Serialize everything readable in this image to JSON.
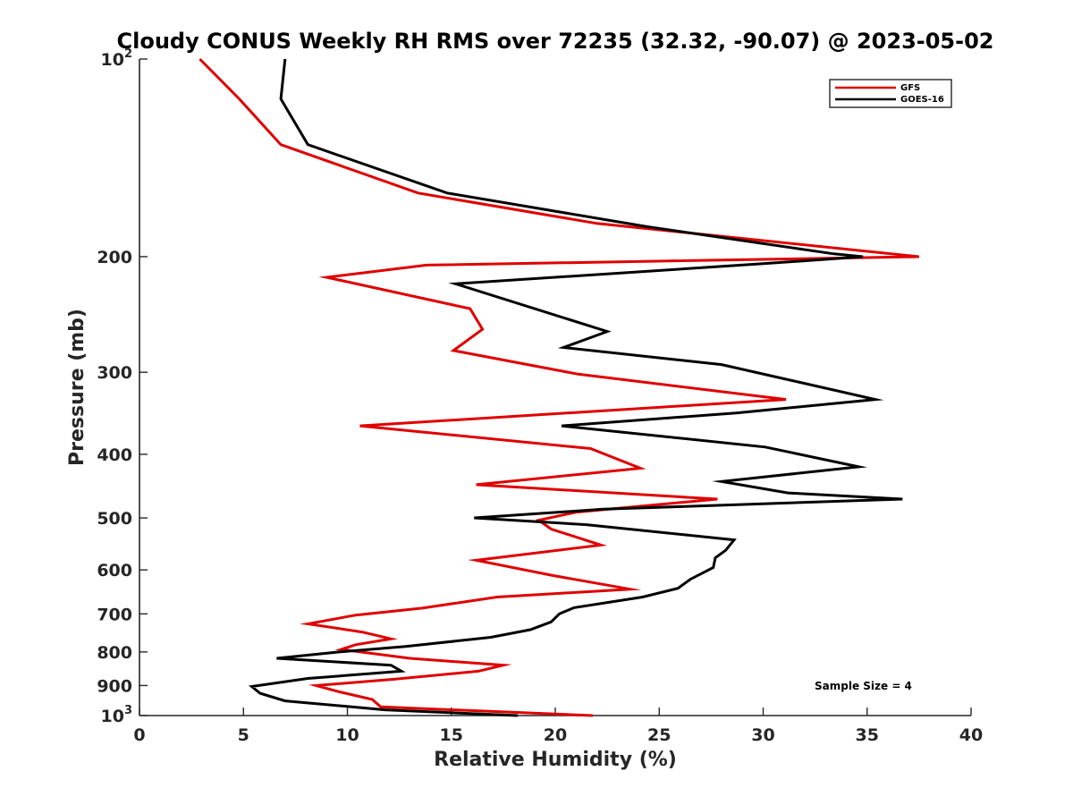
{
  "chart_data": {
    "type": "line",
    "title": "Cloudy CONUS Weekly RH RMS over 72235 (32.32, -90.07) @ 2023-05-02",
    "xlabel": "Relative Humidity (%)",
    "ylabel": "Pressure (mb)",
    "xlim": [
      0,
      40
    ],
    "ylim": [
      100,
      1000
    ],
    "yscale": "log",
    "y_reversed": true,
    "x_ticks": [
      0,
      5,
      10,
      15,
      20,
      25,
      30,
      35,
      40
    ],
    "y_ticks": [
      {
        "value": 100,
        "label": "10",
        "sup": "2"
      },
      {
        "value": 200,
        "label": "200"
      },
      {
        "value": 300,
        "label": "300"
      },
      {
        "value": 400,
        "label": "400"
      },
      {
        "value": 500,
        "label": "500"
      },
      {
        "value": 600,
        "label": "600"
      },
      {
        "value": 700,
        "label": "700"
      },
      {
        "value": 800,
        "label": "800"
      },
      {
        "value": 900,
        "label": "900"
      },
      {
        "value": 1000,
        "label": "10",
        "sup": "3"
      }
    ],
    "legend_position": "top-right",
    "annotation": "Sample Size = 4",
    "series": [
      {
        "name": "GFS",
        "color": "#e00000",
        "points": [
          [
            2.9,
            100
          ],
          [
            4.8,
            115
          ],
          [
            6.8,
            135
          ],
          [
            13.4,
            160
          ],
          [
            22,
            178
          ],
          [
            37.5,
            200
          ],
          [
            13.8,
            206
          ],
          [
            9.0,
            215
          ],
          [
            15.9,
            240
          ],
          [
            16.5,
            258
          ],
          [
            15.1,
            278
          ],
          [
            21.1,
            302
          ],
          [
            31.1,
            330
          ],
          [
            10.6,
            362
          ],
          [
            21.7,
            392
          ],
          [
            24.1,
            420
          ],
          [
            16.2,
            445
          ],
          [
            27.8,
            468
          ],
          [
            21.0,
            490
          ],
          [
            19.2,
            504
          ],
          [
            19.8,
            520
          ],
          [
            22.2,
            550
          ],
          [
            16.2,
            580
          ],
          [
            19.9,
            612
          ],
          [
            23.6,
            642
          ],
          [
            17.2,
            660
          ],
          [
            13.6,
            686
          ],
          [
            10.4,
            703
          ],
          [
            8.1,
            725
          ],
          [
            10.7,
            746
          ],
          [
            12.1,
            764
          ],
          [
            10.4,
            780
          ],
          [
            9.7,
            793
          ],
          [
            13.0,
            818
          ],
          [
            17.5,
            838
          ],
          [
            16.3,
            856
          ],
          [
            12.3,
            880
          ],
          [
            8.5,
            900
          ],
          [
            9.6,
            920
          ],
          [
            11.2,
            945
          ],
          [
            11.6,
            970
          ],
          [
            21.8,
            1000
          ]
        ]
      },
      {
        "name": "GOES-16",
        "color": "#000000",
        "points": [
          [
            7.0,
            100
          ],
          [
            6.8,
            115
          ],
          [
            8.1,
            135
          ],
          [
            14.8,
            160
          ],
          [
            24.4,
            180
          ],
          [
            33.4,
            198
          ],
          [
            34.8,
            200
          ],
          [
            30,
            205
          ],
          [
            15.2,
            220
          ],
          [
            22.5,
            260
          ],
          [
            20.4,
            275
          ],
          [
            28,
            292
          ],
          [
            35.4,
            330
          ],
          [
            28.7,
            346
          ],
          [
            20.3,
            362
          ],
          [
            30.1,
            390
          ],
          [
            34.6,
            418
          ],
          [
            28,
            440
          ],
          [
            31.2,
            458
          ],
          [
            36.7,
            468
          ],
          [
            22.3,
            485
          ],
          [
            16.1,
            500
          ],
          [
            21.5,
            512
          ],
          [
            28.6,
            540
          ],
          [
            28.2,
            560
          ],
          [
            27.7,
            575
          ],
          [
            27.6,
            595
          ],
          [
            26.5,
            620
          ],
          [
            25.9,
            640
          ],
          [
            24.2,
            660
          ],
          [
            20.9,
            685
          ],
          [
            20.2,
            700
          ],
          [
            19.8,
            720
          ],
          [
            18.8,
            740
          ],
          [
            16.9,
            760
          ],
          [
            12.8,
            785
          ],
          [
            9.6,
            800
          ],
          [
            6.6,
            818
          ],
          [
            12.1,
            838
          ],
          [
            12.6,
            856
          ],
          [
            8.1,
            878
          ],
          [
            5.4,
            903
          ],
          [
            5.8,
            925
          ],
          [
            7.0,
            950
          ],
          [
            11.8,
            980
          ],
          [
            18.2,
            1000
          ]
        ]
      }
    ]
  }
}
